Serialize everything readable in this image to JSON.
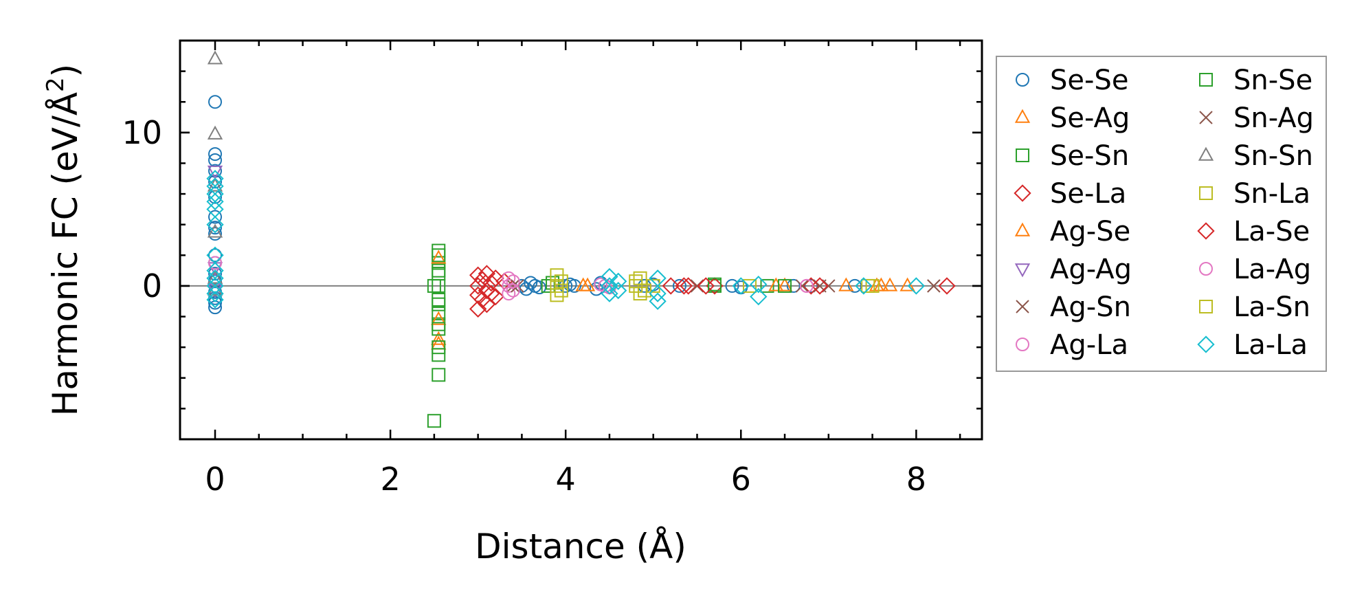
{
  "chart_data": {
    "type": "scatter",
    "title": "",
    "xlabel": "Distance (Å)",
    "ylabel_main": "Harmonic FC (eV/Å",
    "ylabel_sup": "2",
    "ylabel_close": ")",
    "xlim": [
      -0.4,
      8.75
    ],
    "ylim": [
      -10,
      16
    ],
    "xticks": [
      0,
      2,
      4,
      6,
      8
    ],
    "xtick_labels": [
      "0",
      "2",
      "4",
      "6",
      "8"
    ],
    "yticks": [
      0,
      10
    ],
    "ytick_labels": [
      "0",
      "10"
    ],
    "zero_line": 0,
    "legend_position": "outside-right",
    "series": [
      {
        "name": "Se-Se",
        "marker": "circle",
        "color": "#1f77b4",
        "points": [
          [
            0,
            12
          ],
          [
            0,
            8.6
          ],
          [
            0,
            8.2
          ],
          [
            0,
            7.5
          ],
          [
            0,
            6.8
          ],
          [
            0,
            5.8
          ],
          [
            0,
            4.5
          ],
          [
            0,
            3.8
          ],
          [
            0,
            3.4
          ],
          [
            0,
            2
          ],
          [
            0,
            1.5
          ],
          [
            0,
            0.8
          ],
          [
            0,
            0.3
          ],
          [
            0,
            -0.4
          ],
          [
            0,
            -0.8
          ],
          [
            0,
            -1.1
          ],
          [
            0,
            -1.4
          ],
          [
            3.5,
            0
          ],
          [
            3.55,
            -0.2
          ],
          [
            3.6,
            0.2
          ],
          [
            3.65,
            0
          ],
          [
            3.7,
            -0.1
          ],
          [
            4.0,
            0
          ],
          [
            4.05,
            0.1
          ],
          [
            4.1,
            0
          ],
          [
            4.35,
            -0.2
          ],
          [
            4.4,
            0.2
          ],
          [
            4.45,
            0
          ],
          [
            4.9,
            0
          ],
          [
            5.0,
            0.1
          ],
          [
            5.3,
            0
          ],
          [
            5.9,
            0
          ],
          [
            6.0,
            -0.1
          ],
          [
            6.6,
            0
          ],
          [
            6.8,
            0
          ],
          [
            7.3,
            0
          ]
        ]
      },
      {
        "name": "Se-Ag",
        "marker": "triangle-up",
        "color": "#ff7f0e",
        "points": [
          [
            2.55,
            -3.8
          ],
          [
            4.25,
            0
          ],
          [
            6.5,
            0
          ],
          [
            7.2,
            0
          ],
          [
            7.55,
            0
          ],
          [
            7.7,
            0
          ],
          [
            7.9,
            0
          ]
        ]
      },
      {
        "name": "Se-Sn",
        "marker": "square",
        "color": "#2ca02c",
        "points": [
          [
            2.55,
            2.3
          ],
          [
            2.55,
            1.5
          ],
          [
            2.55,
            0.8
          ],
          [
            2.55,
            0
          ],
          [
            2.55,
            -0.9
          ],
          [
            2.55,
            -1.8
          ],
          [
            2.55,
            -2.5
          ],
          [
            2.55,
            -4.5
          ],
          [
            2.55,
            -5.8
          ],
          [
            3.8,
            0
          ],
          [
            5.7,
            0
          ],
          [
            6.3,
            0
          ]
        ]
      },
      {
        "name": "Se-La",
        "marker": "diamond",
        "color": "#d62728",
        "points": [
          [
            3.0,
            0.7
          ],
          [
            3.0,
            0
          ],
          [
            3.0,
            -0.6
          ],
          [
            3.0,
            -1.5
          ],
          [
            3.1,
            0.8
          ],
          [
            3.1,
            -0.3
          ],
          [
            3.1,
            -1.2
          ],
          [
            3.2,
            0.5
          ],
          [
            3.2,
            -0.7
          ],
          [
            3.3,
            0.3
          ],
          [
            5.2,
            0
          ],
          [
            5.4,
            0
          ],
          [
            5.7,
            0
          ],
          [
            6.8,
            0
          ]
        ]
      },
      {
        "name": "Ag-Se",
        "marker": "triangle-up",
        "color": "#ff7f0e",
        "points": [
          [
            2.55,
            -3.5
          ],
          [
            2.55,
            -2.2
          ],
          [
            2.55,
            1.8
          ],
          [
            4.2,
            0
          ],
          [
            6.4,
            0
          ],
          [
            7.6,
            0
          ]
        ]
      },
      {
        "name": "Ag-Ag",
        "marker": "triangle-down",
        "color": "#9467bd",
        "points": [
          [
            0,
            7.5
          ],
          [
            0,
            1.2
          ],
          [
            0,
            -0.2
          ]
        ]
      },
      {
        "name": "Ag-Sn",
        "marker": "x",
        "color": "#8c564b",
        "points": [
          [
            3.4,
            0
          ],
          [
            6.7,
            0
          ],
          [
            7.0,
            0
          ],
          [
            8.2,
            0
          ]
        ]
      },
      {
        "name": "Ag-La",
        "marker": "circle",
        "color": "#e377c2",
        "points": [
          [
            3.35,
            0.5
          ],
          [
            3.35,
            -0.5
          ],
          [
            3.35,
            0
          ],
          [
            4.45,
            0
          ],
          [
            6.75,
            0
          ]
        ]
      },
      {
        "name": "Sn-Se",
        "marker": "square",
        "color": "#2ca02c",
        "points": [
          [
            2.5,
            -8.8
          ],
          [
            2.5,
            0
          ],
          [
            2.55,
            2.0
          ],
          [
            2.55,
            1.0
          ],
          [
            2.55,
            -1.2
          ],
          [
            2.55,
            -2.8
          ],
          [
            2.55,
            -4.0
          ],
          [
            3.85,
            0.2
          ],
          [
            5.7,
            0.1
          ],
          [
            6.5,
            0
          ]
        ]
      },
      {
        "name": "Sn-Ag",
        "marker": "x",
        "color": "#8c564b",
        "points": [
          [
            3.45,
            0
          ],
          [
            5.5,
            0
          ],
          [
            6.9,
            0
          ],
          [
            8.2,
            0
          ]
        ]
      },
      {
        "name": "Sn-Sn",
        "marker": "triangle-up",
        "color": "#7f7f7f",
        "points": [
          [
            0,
            14.8
          ],
          [
            0,
            9.9
          ],
          [
            0,
            6.5
          ],
          [
            0,
            3.5
          ],
          [
            0,
            0.5
          ],
          [
            0,
            -0.3
          ]
        ]
      },
      {
        "name": "Sn-La",
        "marker": "square",
        "color": "#bcbd22",
        "points": [
          [
            3.9,
            0.7
          ],
          [
            3.9,
            0
          ],
          [
            3.9,
            -0.6
          ],
          [
            4.8,
            0
          ],
          [
            4.85,
            0.5
          ],
          [
            4.85,
            -0.5
          ],
          [
            5.0,
            0
          ],
          [
            6.1,
            0
          ],
          [
            7.5,
            0
          ]
        ]
      },
      {
        "name": "La-Se",
        "marker": "diamond",
        "color": "#d62728",
        "points": [
          [
            3.05,
            0.4
          ],
          [
            3.05,
            -0.9
          ],
          [
            3.15,
            0.2
          ],
          [
            3.15,
            -0.5
          ],
          [
            5.35,
            0
          ],
          [
            5.6,
            0
          ],
          [
            6.9,
            0
          ],
          [
            8.35,
            0
          ]
        ]
      },
      {
        "name": "La-Ag",
        "marker": "circle",
        "color": "#e377c2",
        "points": [
          [
            0,
            1.5
          ],
          [
            3.4,
            0.3
          ],
          [
            3.4,
            -0.3
          ],
          [
            4.4,
            0.1
          ],
          [
            4.5,
            -0.1
          ],
          [
            6.75,
            0
          ]
        ]
      },
      {
        "name": "La-Sn",
        "marker": "square",
        "color": "#bcbd22",
        "points": [
          [
            3.95,
            0.3
          ],
          [
            3.95,
            -0.3
          ],
          [
            4.8,
            0.3
          ],
          [
            4.9,
            -0.3
          ],
          [
            7.45,
            0
          ]
        ]
      },
      {
        "name": "La-La",
        "marker": "diamond",
        "color": "#17becf",
        "points": [
          [
            0,
            7.0
          ],
          [
            0,
            6.5
          ],
          [
            0,
            6.0
          ],
          [
            0,
            5.5
          ],
          [
            0,
            5.0
          ],
          [
            0,
            4.0
          ],
          [
            0,
            2.0
          ],
          [
            0,
            1.0
          ],
          [
            0,
            0.5
          ],
          [
            0,
            0
          ],
          [
            0,
            -0.5
          ],
          [
            0,
            -0.9
          ],
          [
            4.5,
            0.6
          ],
          [
            4.5,
            0
          ],
          [
            4.5,
            -0.5
          ],
          [
            4.6,
            0.3
          ],
          [
            4.6,
            -0.3
          ],
          [
            5.05,
            0.5
          ],
          [
            5.05,
            -0.5
          ],
          [
            5.05,
            -1.0
          ],
          [
            6.0,
            0
          ],
          [
            6.2,
            0.1
          ],
          [
            6.2,
            -0.7
          ],
          [
            7.4,
            0
          ],
          [
            8.0,
            0
          ]
        ]
      }
    ]
  }
}
